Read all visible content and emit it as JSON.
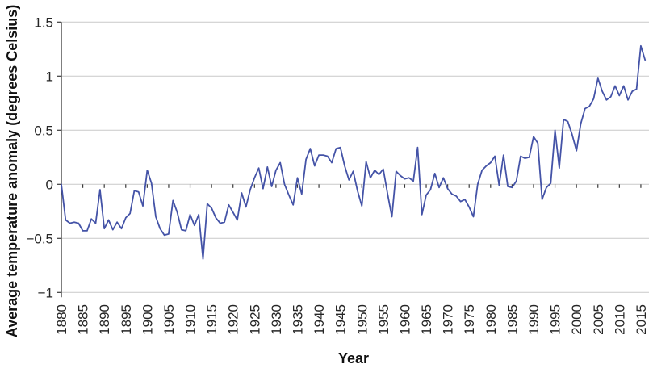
{
  "figure": {
    "y_axis_title": "Average temperature anomaly (degrees Celsius)",
    "x_axis_title": "Year"
  },
  "colors": {
    "line": "#4453a7",
    "grid": "#c9c9c9",
    "axis": "#3a3a3a",
    "tick_text": "#262626",
    "background": "#ffffff"
  },
  "chart_data": {
    "type": "line",
    "title": "",
    "xlabel": "Year",
    "ylabel": "Average temperature anomaly (degrees Celsius)",
    "xlim": [
      1880,
      2016
    ],
    "ylim": [
      -1,
      1.5
    ],
    "grid": "horizontal",
    "legend": "none",
    "y_tick_values": [
      1.5,
      1,
      0.5,
      0,
      -0.5,
      -1
    ],
    "y_tick_labels": [
      "1.5",
      "1",
      "0.5",
      "0",
      "−0.5",
      "−1"
    ],
    "x_tick_years": [
      1880,
      1885,
      1890,
      1895,
      1900,
      1905,
      1910,
      1915,
      1920,
      1925,
      1930,
      1935,
      1940,
      1945,
      1950,
      1955,
      1960,
      1965,
      1970,
      1975,
      1980,
      1985,
      1990,
      1995,
      2000,
      2005,
      2010,
      2015
    ],
    "series": [
      {
        "name": "Average temperature anomaly",
        "x_start": 1880,
        "x_step": 1,
        "values": [
          0.0,
          -0.33,
          -0.36,
          -0.35,
          -0.36,
          -0.43,
          -0.43,
          -0.32,
          -0.36,
          -0.05,
          -0.41,
          -0.33,
          -0.42,
          -0.35,
          -0.41,
          -0.31,
          -0.27,
          -0.06,
          -0.07,
          -0.2,
          0.13,
          0.01,
          -0.3,
          -0.41,
          -0.47,
          -0.46,
          -0.15,
          -0.26,
          -0.42,
          -0.43,
          -0.28,
          -0.38,
          -0.28,
          -0.69,
          -0.18,
          -0.22,
          -0.31,
          -0.36,
          -0.35,
          -0.19,
          -0.26,
          -0.33,
          -0.08,
          -0.21,
          -0.05,
          0.06,
          0.15,
          -0.04,
          0.16,
          -0.02,
          0.13,
          0.2,
          0.0,
          -0.1,
          -0.19,
          0.06,
          -0.09,
          0.23,
          0.33,
          0.17,
          0.27,
          0.27,
          0.26,
          0.2,
          0.33,
          0.34,
          0.17,
          0.04,
          0.12,
          -0.06,
          -0.2,
          0.21,
          0.06,
          0.13,
          0.09,
          0.14,
          -0.09,
          -0.3,
          0.12,
          0.08,
          0.05,
          0.06,
          0.03,
          0.34,
          -0.28,
          -0.1,
          -0.05,
          0.1,
          -0.03,
          0.06,
          -0.04,
          -0.09,
          -0.11,
          -0.16,
          -0.14,
          -0.21,
          -0.3,
          0.0,
          0.13,
          0.17,
          0.2,
          0.26,
          -0.01,
          0.27,
          -0.02,
          -0.03,
          0.03,
          0.26,
          0.24,
          0.25,
          0.44,
          0.38,
          -0.14,
          -0.03,
          0.01,
          0.5,
          0.15,
          0.6,
          0.58,
          0.46,
          0.31,
          0.56,
          0.7,
          0.72,
          0.79,
          0.98,
          0.86,
          0.78,
          0.81,
          0.91,
          0.82,
          0.91,
          0.78,
          0.86,
          0.88,
          1.28,
          1.15
        ]
      }
    ]
  }
}
